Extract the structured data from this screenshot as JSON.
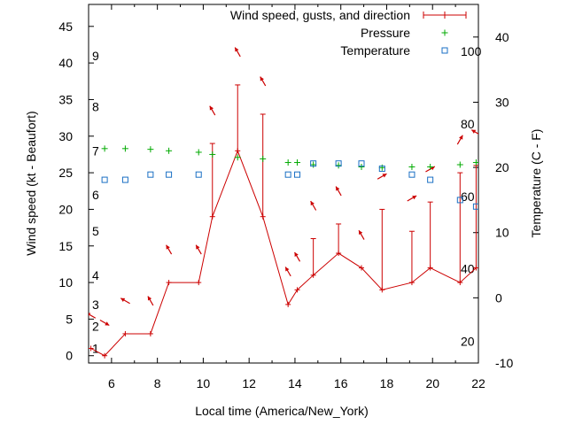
{
  "chart_data": {
    "type": "line",
    "xlabel": "Local time (America/New_York)",
    "ylabel": "Wind speed (kt - Beaufort)",
    "y2label": "Temperature (C - F)",
    "xlim": [
      5,
      22
    ],
    "ylim": [
      -1,
      48
    ],
    "y2lim": [
      -10,
      45
    ],
    "x_ticks": [
      "6",
      "8",
      "10",
      "12",
      "14",
      "16",
      "18",
      "20",
      "22"
    ],
    "y_ticks": [
      "0",
      "5",
      "10",
      "15",
      "20",
      "25",
      "30",
      "35",
      "40",
      "45"
    ],
    "y2_ticks": [
      "-10",
      "0",
      "10",
      "20",
      "30",
      "40"
    ],
    "beaufort_ticks": [
      "1",
      "2",
      "3",
      "4",
      "5",
      "6",
      "7",
      "8",
      "9"
    ],
    "fahrenheit_ticks": [
      "20",
      "40",
      "60",
      "80",
      "100"
    ],
    "legend_position": "top-right",
    "grid": false,
    "series": [
      {
        "name": "Wind speed, gusts, and direction",
        "color": "#cc0000",
        "x": [
          5.1,
          5.7,
          6.6,
          7.7,
          8.5,
          9.8,
          10.4,
          11.5,
          12.6,
          13.7,
          14.1,
          14.8,
          15.9,
          16.9,
          17.8,
          19.1,
          19.9,
          21.2,
          21.9
        ],
        "y": [
          1,
          0,
          3,
          3,
          10,
          10,
          19,
          28,
          19,
          7,
          9,
          11,
          14,
          12,
          9,
          10,
          12,
          10,
          12
        ],
        "gusts": [
          null,
          null,
          null,
          null,
          null,
          null,
          29,
          37,
          33,
          null,
          null,
          16,
          18,
          null,
          20,
          17,
          21,
          25,
          26
        ],
        "direction_deg": [
          300,
          120,
          300,
          330,
          330,
          330,
          330,
          330,
          330,
          330,
          330,
          330,
          330,
          330,
          60,
          60,
          60,
          30,
          300
        ]
      },
      {
        "name": "Pressure",
        "color": "#00aa00",
        "x": [
          5.7,
          6.6,
          7.7,
          8.5,
          9.8,
          10.4,
          11.5,
          12.6,
          13.7,
          14.1,
          14.8,
          15.9,
          16.9,
          17.8,
          19.1,
          19.9,
          21.2,
          21.9
        ],
        "y": [
          28.3,
          28.3,
          28.2,
          28.0,
          27.8,
          27.5,
          27.1,
          26.9,
          26.4,
          26.4,
          26.1,
          26.0,
          25.8,
          25.7,
          25.8,
          25.8,
          26.1,
          26.4
        ]
      },
      {
        "name": "Temperature",
        "color": "#1a6fc4",
        "x": [
          5.7,
          6.6,
          7.7,
          8.5,
          9.8,
          13.7,
          14.1,
          14.8,
          15.9,
          16.9,
          17.8,
          19.1,
          19.9,
          21.2,
          21.9
        ],
        "y": [
          18.1,
          18.1,
          18.9,
          18.9,
          18.9,
          18.9,
          18.9,
          20.6,
          20.6,
          20.6,
          19.8,
          18.9,
          18.1,
          15.0,
          14.0
        ]
      }
    ]
  }
}
